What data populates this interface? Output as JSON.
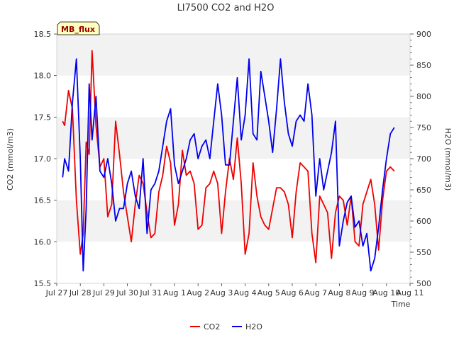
{
  "chart_data": {
    "type": "line",
    "title": "LI7500 CO2 and H2O",
    "xlabel": "Time",
    "ylabel_left": "CO2 (mmol/m3)",
    "ylabel_right": "H2O (mmol/m3)",
    "site_label": "MB_flux",
    "x_range": [
      "2024-07-27",
      "2024-08-11"
    ],
    "x_tick_labels": [
      "Jul 27",
      "Jul 28",
      "Jul 29",
      "Jul 30",
      "Jul 31",
      "Aug 1",
      "Aug 2",
      "Aug 3",
      "Aug 4",
      "Aug 5",
      "Aug 6",
      "Aug 7",
      "Aug 8",
      "Aug 9",
      "Aug 10",
      "Aug 11"
    ],
    "ylim_left": [
      15.5,
      18.5
    ],
    "y_ticks_left": [
      "15.5",
      "16.0",
      "16.5",
      "17.0",
      "17.5",
      "18.0",
      "18.5"
    ],
    "ylim_right": [
      500,
      900
    ],
    "y_ticks_right": [
      "500",
      "550",
      "600",
      "650",
      "700",
      "750",
      "800",
      "850",
      "900"
    ],
    "grid": "horizontal bands",
    "legend_position": "bottom-center",
    "series": [
      {
        "name": "CO2",
        "axis": "left",
        "color": "#ee0000",
        "x": [
          "2024-07-27T06:00",
          "2024-07-27T08:00",
          "2024-07-27T12:00",
          "2024-07-27T16:00",
          "2024-07-27T20:00",
          "2024-07-28T00:00",
          "2024-07-28T03:00",
          "2024-07-28T06:00",
          "2024-07-28T09:00",
          "2024-07-28T12:00",
          "2024-07-28T16:00",
          "2024-07-28T20:00",
          "2024-07-29T00:00",
          "2024-07-29T04:00",
          "2024-07-29T08:00",
          "2024-07-29T12:00",
          "2024-07-29T16:00",
          "2024-07-29T20:00",
          "2024-07-30T00:00",
          "2024-07-30T04:00",
          "2024-07-30T08:00",
          "2024-07-30T12:00",
          "2024-07-30T16:00",
          "2024-07-30T20:00",
          "2024-07-31T00:00",
          "2024-07-31T04:00",
          "2024-07-31T08:00",
          "2024-07-31T12:00",
          "2024-07-31T16:00",
          "2024-07-31T20:00",
          "2024-08-01T00:00",
          "2024-08-01T04:00",
          "2024-08-01T08:00",
          "2024-08-01T12:00",
          "2024-08-01T16:00",
          "2024-08-01T20:00",
          "2024-08-02T00:00",
          "2024-08-02T04:00",
          "2024-08-02T08:00",
          "2024-08-02T12:00",
          "2024-08-02T16:00",
          "2024-08-02T20:00",
          "2024-08-03T00:00",
          "2024-08-03T04:00",
          "2024-08-03T08:00",
          "2024-08-03T12:00",
          "2024-08-03T16:00",
          "2024-08-03T20:00",
          "2024-08-04T00:00",
          "2024-08-04T04:00",
          "2024-08-04T08:00",
          "2024-08-04T12:00",
          "2024-08-04T16:00",
          "2024-08-04T20:00",
          "2024-08-05T00:00",
          "2024-08-05T04:00",
          "2024-08-05T08:00",
          "2024-08-05T12:00",
          "2024-08-05T16:00",
          "2024-08-05T20:00",
          "2024-08-06T00:00",
          "2024-08-06T04:00",
          "2024-08-06T08:00",
          "2024-08-06T12:00",
          "2024-08-06T16:00",
          "2024-08-06T20:00",
          "2024-08-07T00:00",
          "2024-08-07T04:00",
          "2024-08-07T08:00",
          "2024-08-07T12:00",
          "2024-08-07T16:00",
          "2024-08-07T20:00",
          "2024-08-08T00:00",
          "2024-08-08T04:00",
          "2024-08-08T08:00",
          "2024-08-08T12:00",
          "2024-08-08T16:00",
          "2024-08-08T20:00",
          "2024-08-09T00:00",
          "2024-08-09T04:00",
          "2024-08-09T08:00",
          "2024-08-09T12:00",
          "2024-08-09T16:00",
          "2024-08-09T20:00",
          "2024-08-10T00:00",
          "2024-08-10T04:00",
          "2024-08-10T08:00"
        ],
        "values": [
          17.45,
          17.4,
          17.82,
          17.6,
          16.5,
          15.85,
          16.1,
          17.2,
          17.05,
          18.3,
          17.4,
          16.9,
          17.0,
          16.3,
          16.45,
          17.45,
          17.05,
          16.6,
          16.3,
          16.0,
          16.45,
          16.8,
          16.7,
          16.35,
          16.05,
          16.1,
          16.6,
          16.8,
          17.15,
          16.95,
          16.2,
          16.45,
          17.1,
          16.8,
          16.85,
          16.7,
          16.15,
          16.2,
          16.65,
          16.7,
          16.85,
          16.7,
          16.1,
          16.6,
          17.0,
          16.75,
          17.25,
          16.7,
          15.85,
          16.1,
          16.95,
          16.55,
          16.3,
          16.2,
          16.15,
          16.4,
          16.65,
          16.65,
          16.6,
          16.45,
          16.05,
          16.6,
          16.95,
          16.9,
          16.85,
          16.1,
          15.75,
          16.55,
          16.45,
          16.35,
          15.8,
          16.35,
          16.55,
          16.5,
          16.2,
          16.55,
          16.0,
          15.95,
          16.45,
          16.6,
          16.75,
          16.45,
          15.9,
          16.5,
          16.85,
          16.9,
          16.85
        ]
      },
      {
        "name": "H2O",
        "axis": "right",
        "color": "#0000ee",
        "x": [
          "2024-07-27T06:00",
          "2024-07-27T08:00",
          "2024-07-27T12:00",
          "2024-07-27T16:00",
          "2024-07-27T20:00",
          "2024-07-28T00:00",
          "2024-07-28T03:00",
          "2024-07-28T06:00",
          "2024-07-28T09:00",
          "2024-07-28T12:00",
          "2024-07-28T16:00",
          "2024-07-28T20:00",
          "2024-07-29T00:00",
          "2024-07-29T04:00",
          "2024-07-29T08:00",
          "2024-07-29T12:00",
          "2024-07-29T16:00",
          "2024-07-29T20:00",
          "2024-07-30T00:00",
          "2024-07-30T04:00",
          "2024-07-30T08:00",
          "2024-07-30T12:00",
          "2024-07-30T16:00",
          "2024-07-30T20:00",
          "2024-07-31T00:00",
          "2024-07-31T04:00",
          "2024-07-31T08:00",
          "2024-07-31T12:00",
          "2024-07-31T16:00",
          "2024-07-31T20:00",
          "2024-08-01T00:00",
          "2024-08-01T04:00",
          "2024-08-01T08:00",
          "2024-08-01T12:00",
          "2024-08-01T16:00",
          "2024-08-01T20:00",
          "2024-08-02T00:00",
          "2024-08-02T04:00",
          "2024-08-02T08:00",
          "2024-08-02T12:00",
          "2024-08-02T16:00",
          "2024-08-02T20:00",
          "2024-08-03T00:00",
          "2024-08-03T04:00",
          "2024-08-03T08:00",
          "2024-08-03T12:00",
          "2024-08-03T16:00",
          "2024-08-03T20:00",
          "2024-08-04T00:00",
          "2024-08-04T04:00",
          "2024-08-04T08:00",
          "2024-08-04T12:00",
          "2024-08-04T16:00",
          "2024-08-04T20:00",
          "2024-08-05T00:00",
          "2024-08-05T04:00",
          "2024-08-05T08:00",
          "2024-08-05T12:00",
          "2024-08-05T16:00",
          "2024-08-05T20:00",
          "2024-08-06T00:00",
          "2024-08-06T04:00",
          "2024-08-06T08:00",
          "2024-08-06T12:00",
          "2024-08-06T16:00",
          "2024-08-06T20:00",
          "2024-08-07T00:00",
          "2024-08-07T04:00",
          "2024-08-07T08:00",
          "2024-08-07T12:00",
          "2024-08-07T16:00",
          "2024-08-07T20:00",
          "2024-08-08T00:00",
          "2024-08-08T04:00",
          "2024-08-08T08:00",
          "2024-08-08T12:00",
          "2024-08-08T16:00",
          "2024-08-08T20:00",
          "2024-08-09T00:00",
          "2024-08-09T04:00",
          "2024-08-09T08:00",
          "2024-08-09T12:00",
          "2024-08-09T16:00",
          "2024-08-09T20:00",
          "2024-08-10T00:00",
          "2024-08-10T04:00",
          "2024-08-10T08:00"
        ],
        "values": [
          670,
          700,
          680,
          790,
          860,
          700,
          520,
          620,
          820,
          730,
          800,
          680,
          670,
          700,
          660,
          600,
          620,
          620,
          660,
          680,
          640,
          620,
          700,
          580,
          650,
          660,
          680,
          720,
          760,
          780,
          690,
          660,
          680,
          700,
          730,
          740,
          700,
          720,
          730,
          700,
          760,
          820,
          770,
          690,
          690,
          760,
          830,
          730,
          770,
          860,
          740,
          730,
          840,
          800,
          760,
          710,
          780,
          860,
          790,
          740,
          720,
          760,
          770,
          760,
          820,
          770,
          640,
          700,
          650,
          680,
          710,
          760,
          560,
          600,
          630,
          640,
          590,
          600,
          560,
          580,
          520,
          540,
          590,
          650,
          700,
          740,
          750
        ]
      }
    ]
  }
}
